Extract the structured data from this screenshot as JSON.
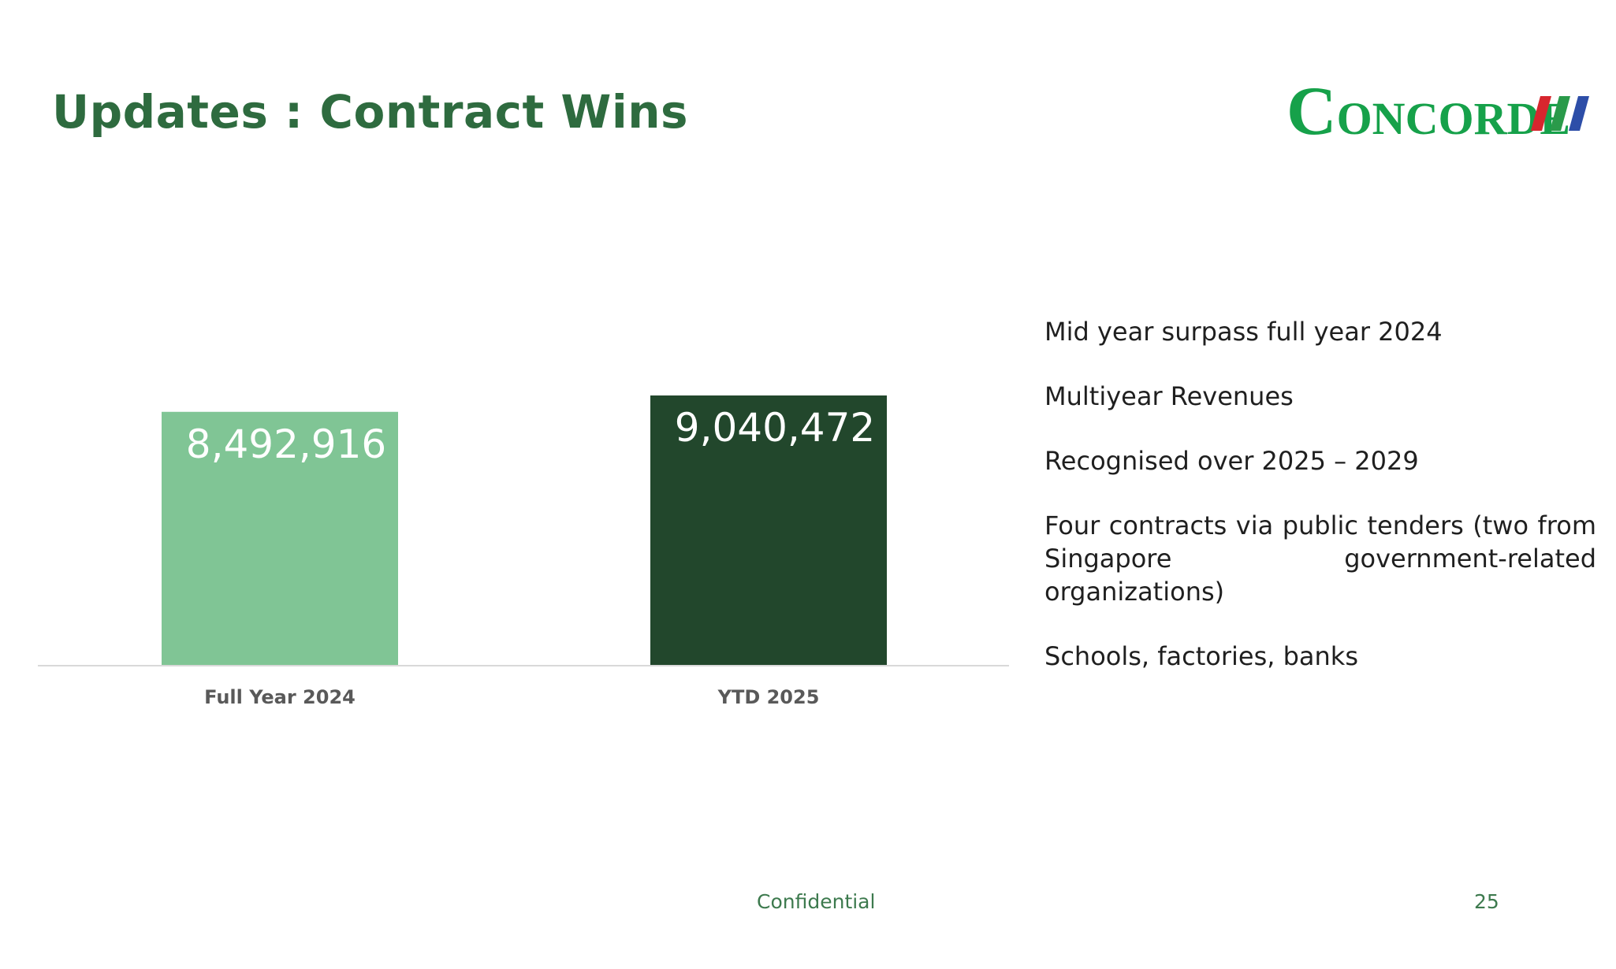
{
  "slide": {
    "title": "Updates : Contract Wins",
    "page_number": "25",
    "footer_text": "Confidential"
  },
  "logo": {
    "text_initial": "C",
    "text_rest": "ONCORDE",
    "text_color": "#16a14a",
    "stripe_colors": [
      "#d7262e",
      "#2a9a4a",
      "#2d4ea8"
    ]
  },
  "bullets": [
    "Mid year surpass full year 2024",
    "Multiyear Revenues",
    "Recognised over 2025 – 2029",
    "Four contracts via public tenders (two from Singapore government-related organizations)",
    "Schools, factories, banks"
  ],
  "chart_data": {
    "type": "bar",
    "title": "",
    "xlabel": "",
    "ylabel": "",
    "categories": [
      "Full Year 2024",
      "YTD 2025"
    ],
    "values": [
      8492916,
      9040472
    ],
    "data_labels": [
      "8,492,916",
      "9,040,472"
    ],
    "bar_colors": [
      "#80c595",
      "#22472c"
    ],
    "ylim": [
      0,
      9500000
    ],
    "grid": false,
    "legend": "none"
  }
}
